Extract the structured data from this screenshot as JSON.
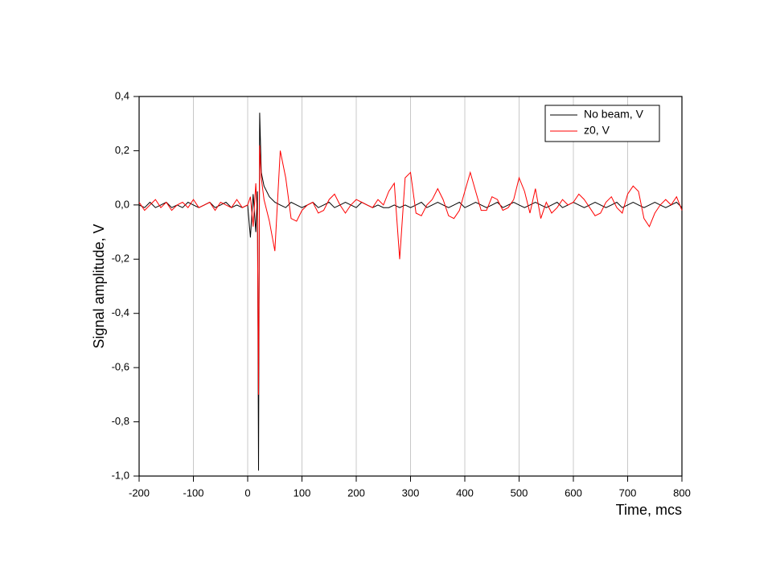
{
  "chart_data": {
    "type": "line",
    "x_label": "Time, mcs",
    "y_label": "Signal amplitude, V",
    "x": [
      -200,
      -190,
      -180,
      -170,
      -160,
      -150,
      -140,
      -130,
      -120,
      -110,
      -100,
      -90,
      -80,
      -70,
      -60,
      -50,
      -40,
      -30,
      -20,
      -10,
      0,
      5,
      10,
      15,
      18,
      20,
      22,
      25,
      30,
      40,
      50,
      60,
      70,
      80,
      90,
      100,
      110,
      120,
      130,
      140,
      150,
      160,
      170,
      180,
      190,
      200,
      210,
      220,
      230,
      240,
      250,
      260,
      270,
      280,
      290,
      300,
      310,
      320,
      330,
      340,
      350,
      360,
      370,
      380,
      390,
      400,
      410,
      420,
      430,
      440,
      450,
      460,
      470,
      480,
      490,
      500,
      510,
      520,
      530,
      540,
      550,
      560,
      570,
      580,
      590,
      600,
      610,
      620,
      630,
      640,
      650,
      660,
      670,
      680,
      690,
      700,
      710,
      720,
      730,
      740,
      750,
      760,
      770,
      780,
      790,
      800
    ],
    "series": [
      {
        "name": "No beam, V",
        "color": "#000000",
        "values": [
          0.0,
          -0.01,
          0.01,
          -0.01,
          0.0,
          0.01,
          -0.01,
          0.0,
          -0.01,
          0.01,
          0.0,
          -0.01,
          0.0,
          0.01,
          -0.01,
          0.0,
          0.01,
          -0.01,
          0.0,
          -0.01,
          0.0,
          -0.12,
          0.04,
          -0.1,
          0.05,
          -0.98,
          0.34,
          0.12,
          0.07,
          0.03,
          0.01,
          0.0,
          -0.01,
          0.01,
          0.0,
          -0.01,
          0.0,
          0.01,
          -0.01,
          0.0,
          0.01,
          -0.01,
          0.0,
          0.01,
          0.0,
          -0.01,
          0.01,
          0.0,
          -0.01,
          0.0,
          -0.01,
          -0.01,
          0.0,
          -0.01,
          0.0,
          -0.01,
          0.0,
          0.01,
          -0.01,
          0.0,
          0.01,
          0.0,
          -0.01,
          0.0,
          0.01,
          -0.01,
          0.0,
          0.01,
          0.0,
          -0.01,
          0.0,
          0.01,
          -0.01,
          0.0,
          0.01,
          0.0,
          -0.01,
          0.0,
          0.01,
          0.0,
          -0.01,
          0.0,
          0.01,
          -0.01,
          0.0,
          0.01,
          0.0,
          -0.01,
          0.0,
          0.01,
          0.0,
          -0.01,
          0.0,
          0.01,
          -0.01,
          0.0,
          0.01,
          0.0,
          -0.01,
          0.0,
          0.01,
          0.0,
          -0.01,
          0.0,
          0.01,
          -0.01
        ]
      },
      {
        "name": "z0, V",
        "color": "#ff0000",
        "values": [
          0.01,
          -0.02,
          0.0,
          0.02,
          -0.01,
          0.01,
          -0.02,
          0.0,
          0.01,
          -0.01,
          0.02,
          -0.01,
          0.0,
          0.01,
          -0.02,
          0.01,
          0.0,
          -0.01,
          0.02,
          -0.01,
          0.0,
          0.03,
          -0.08,
          0.08,
          -0.05,
          -0.7,
          0.22,
          0.1,
          0.02,
          -0.06,
          -0.17,
          0.2,
          0.1,
          -0.05,
          -0.06,
          -0.02,
          0.0,
          0.01,
          -0.03,
          -0.02,
          0.02,
          0.04,
          0.0,
          -0.03,
          0.0,
          0.02,
          0.01,
          0.0,
          -0.01,
          0.02,
          0.0,
          0.05,
          0.08,
          -0.2,
          0.1,
          0.12,
          -0.03,
          -0.04,
          0.0,
          0.02,
          0.06,
          0.02,
          -0.04,
          -0.05,
          -0.02,
          0.05,
          0.12,
          0.05,
          -0.02,
          -0.02,
          0.03,
          0.02,
          -0.02,
          -0.01,
          0.02,
          0.1,
          0.05,
          -0.03,
          0.06,
          -0.05,
          0.01,
          -0.03,
          -0.01,
          0.02,
          0.0,
          0.01,
          0.04,
          0.02,
          -0.01,
          -0.04,
          -0.03,
          0.01,
          0.03,
          -0.01,
          -0.03,
          0.04,
          0.07,
          0.05,
          -0.05,
          -0.08,
          -0.03,
          0.0,
          0.02,
          0.0,
          0.03,
          -0.02
        ]
      }
    ],
    "xlim": [
      -200,
      800
    ],
    "xticks": [
      -200,
      -100,
      0,
      100,
      200,
      300,
      400,
      500,
      600,
      700,
      800
    ],
    "ylim": [
      -1,
      0.4
    ],
    "yticks": [
      {
        "value": -1,
        "label": "-1,0"
      },
      {
        "value": -0.8,
        "label": "-0,8"
      },
      {
        "value": -0.6,
        "label": "-0,6"
      },
      {
        "value": -0.4,
        "label": "-0,4"
      },
      {
        "value": -0.2,
        "label": "-0,2"
      },
      {
        "value": 0,
        "label": "0,0"
      },
      {
        "value": 0.2,
        "label": "0,2"
      },
      {
        "value": 0.4,
        "label": "0,4"
      }
    ],
    "grid": "x",
    "legend": "top-right"
  }
}
